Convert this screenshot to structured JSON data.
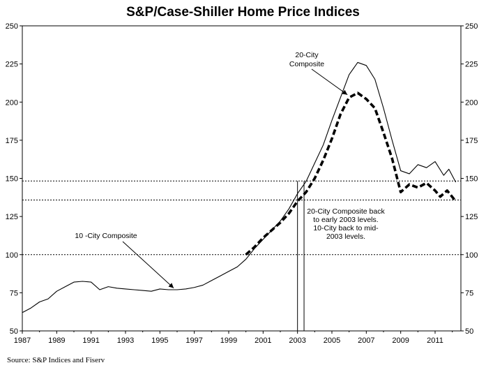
{
  "chart_data": {
    "type": "line",
    "title": "S&P/Case-Shiller Home Price Indices",
    "xlabel": "",
    "ylabel": "",
    "xlim": [
      1987,
      2012.5
    ],
    "ylim": [
      50,
      250
    ],
    "grid": false,
    "x_ticks": [
      "1987",
      "1989",
      "1991",
      "1993",
      "1995",
      "1997",
      "1999",
      "2001",
      "2003",
      "2005",
      "2007",
      "2009",
      "2011"
    ],
    "y_ticks": [
      "50",
      "75",
      "100",
      "125",
      "150",
      "175",
      "200",
      "225",
      "250"
    ],
    "reference_lines": [
      100,
      148.3,
      135.8
    ],
    "reference_verticals": [
      2003.0,
      2003.38
    ],
    "series": [
      {
        "name": "10 -City Composite",
        "style": "thin-solid",
        "color": "#000000",
        "points": [
          [
            1987.0,
            62
          ],
          [
            1987.5,
            65
          ],
          [
            1988.0,
            69
          ],
          [
            1988.5,
            71
          ],
          [
            1989.0,
            76
          ],
          [
            1989.5,
            79
          ],
          [
            1990.0,
            82
          ],
          [
            1990.5,
            82.5
          ],
          [
            1991.0,
            82
          ],
          [
            1991.5,
            77
          ],
          [
            1992.0,
            79
          ],
          [
            1992.5,
            78
          ],
          [
            1993.0,
            77.5
          ],
          [
            1993.5,
            77
          ],
          [
            1994.0,
            76.5
          ],
          [
            1994.5,
            76
          ],
          [
            1995.0,
            77.5
          ],
          [
            1995.5,
            77
          ],
          [
            1996.0,
            77
          ],
          [
            1996.5,
            77.5
          ],
          [
            1997.0,
            78.5
          ],
          [
            1997.5,
            80
          ],
          [
            1998.0,
            83
          ],
          [
            1998.5,
            86
          ],
          [
            1999.0,
            89
          ],
          [
            1999.5,
            92
          ],
          [
            2000.0,
            97
          ],
          [
            2000.5,
            104
          ],
          [
            2001.0,
            110
          ],
          [
            2001.5,
            116
          ],
          [
            2002.0,
            122
          ],
          [
            2002.5,
            130
          ],
          [
            2003.0,
            140
          ],
          [
            2003.5,
            148
          ],
          [
            2004.0,
            160
          ],
          [
            2004.5,
            172
          ],
          [
            2005.0,
            188
          ],
          [
            2005.5,
            203
          ],
          [
            2006.0,
            218
          ],
          [
            2006.5,
            226
          ],
          [
            2007.0,
            224
          ],
          [
            2007.5,
            215
          ],
          [
            2008.0,
            196
          ],
          [
            2008.5,
            175
          ],
          [
            2009.0,
            155
          ],
          [
            2009.5,
            153
          ],
          [
            2010.0,
            159
          ],
          [
            2010.5,
            157
          ],
          [
            2011.0,
            161
          ],
          [
            2011.5,
            152
          ],
          [
            2011.8,
            156
          ],
          [
            2012.2,
            147.5
          ]
        ]
      },
      {
        "name": "20-City Composite",
        "style": "thick-dashed",
        "color": "#000000",
        "points": [
          [
            2000.0,
            100
          ],
          [
            2000.5,
            105
          ],
          [
            2001.0,
            111
          ],
          [
            2001.5,
            116
          ],
          [
            2002.0,
            121
          ],
          [
            2002.5,
            127
          ],
          [
            2003.0,
            135
          ],
          [
            2003.5,
            141
          ],
          [
            2004.0,
            150
          ],
          [
            2004.5,
            162
          ],
          [
            2005.0,
            176
          ],
          [
            2005.5,
            192
          ],
          [
            2006.0,
            203
          ],
          [
            2006.5,
            206
          ],
          [
            2007.0,
            202
          ],
          [
            2007.5,
            196
          ],
          [
            2008.0,
            180
          ],
          [
            2008.5,
            163
          ],
          [
            2009.0,
            141
          ],
          [
            2009.5,
            146
          ],
          [
            2010.0,
            144
          ],
          [
            2010.5,
            147
          ],
          [
            2011.0,
            142
          ],
          [
            2011.3,
            138
          ],
          [
            2011.7,
            142
          ],
          [
            2012.2,
            135
          ]
        ]
      }
    ],
    "annotations": [
      {
        "id": "ten-city",
        "text": [
          "10 -City Composite"
        ]
      },
      {
        "id": "twenty-city",
        "text": [
          "20-City",
          "Composite"
        ]
      },
      {
        "id": "note",
        "text": [
          "20-City Composite back",
          "to early 2003 levels.",
          "10-City back to mid-",
          "2003 levels."
        ]
      }
    ]
  },
  "source": "Source: S&P Indices and Fiserv"
}
